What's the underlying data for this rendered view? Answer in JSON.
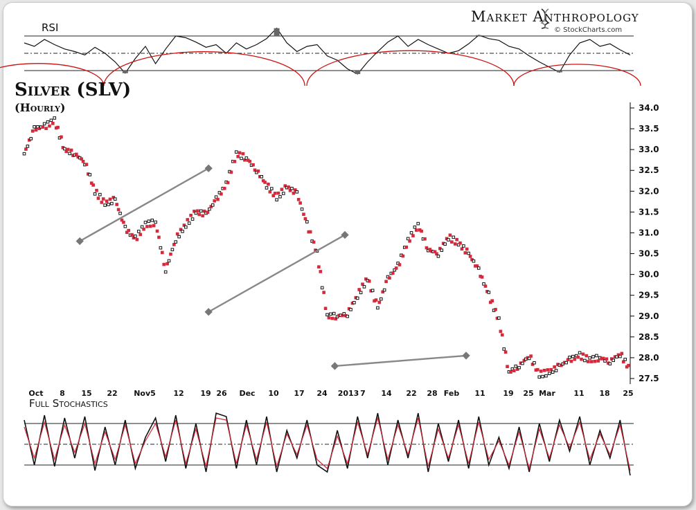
{
  "brand": {
    "name": "Market Anthropology",
    "source": "© StockCharts.com"
  },
  "colors": {
    "black": "#111111",
    "red": "#d42a3c",
    "trend": "#888888",
    "arc": "#cc1111"
  },
  "panels": {
    "rsi_label": "RSI",
    "price_title": "Silver (SLV)",
    "price_subtitle": "(Hourly)",
    "stoch_label": "Full Stochastics"
  },
  "chart_data": [
    {
      "type": "line",
      "title": "RSI",
      "ylim": [
        0,
        100
      ],
      "reference_lines": [
        70,
        50,
        30
      ],
      "x": [
        0,
        2,
        4,
        6,
        8,
        10,
        12,
        14,
        16,
        18,
        20,
        22,
        24,
        26,
        28,
        30,
        32,
        34,
        36,
        38,
        40,
        42,
        44,
        46,
        48,
        50,
        52,
        54,
        56,
        58,
        60,
        62,
        64,
        66,
        68,
        70,
        72,
        74,
        76,
        78,
        80,
        82,
        84,
        86,
        88,
        90,
        92,
        94,
        96,
        98,
        100,
        102,
        104,
        106,
        108,
        110,
        112,
        114,
        116,
        118,
        120
      ],
      "series": [
        {
          "values": [
            62,
            58,
            66,
            60,
            55,
            52,
            48,
            57,
            50,
            40,
            27,
            44,
            58,
            38,
            55,
            70,
            68,
            63,
            57,
            60,
            50,
            62,
            55,
            60,
            67,
            79,
            62,
            52,
            58,
            60,
            47,
            42,
            32,
            26,
            40,
            52,
            63,
            70,
            58,
            66,
            60,
            55,
            50,
            53,
            61,
            71,
            67,
            65,
            58,
            55,
            47,
            40,
            34,
            28,
            48,
            62,
            66,
            58,
            61,
            54,
            48
          ]
        }
      ],
      "arcs": "four semicircular cycle arcs"
    },
    {
      "type": "scatter",
      "title": "Silver (SLV)",
      "subtitle": "(Hourly)",
      "ylim": [
        27.5,
        34.0
      ],
      "yticks": [
        34.0,
        33.5,
        33.0,
        32.5,
        32.0,
        31.5,
        31.0,
        30.5,
        30.0,
        29.5,
        29.0,
        28.5,
        28.0,
        27.5
      ],
      "xtick_labels": [
        "Oct",
        "8",
        "15",
        "22",
        "Nov5",
        "12",
        "19",
        "26",
        "Dec",
        "10",
        "17",
        "24",
        "2013",
        "7",
        "14",
        "22",
        "28",
        "Feb",
        "11",
        "19",
        "25",
        "Mar",
        "11",
        "18",
        "25"
      ],
      "x": [
        0,
        2,
        4,
        6,
        8,
        10,
        12,
        14,
        16,
        18,
        20,
        22,
        24,
        26,
        28,
        30,
        32,
        34,
        36,
        38,
        40,
        42,
        44,
        46,
        48,
        50,
        52,
        54,
        56,
        58,
        60,
        62,
        64,
        66,
        68,
        70,
        72,
        74,
        76,
        78,
        80,
        82,
        84,
        86,
        88,
        90,
        92,
        94,
        96,
        98,
        100,
        102,
        104,
        106,
        108,
        110,
        112,
        114,
        116,
        118,
        120
      ],
      "series": [
        {
          "name": "close",
          "values": [
            32.9,
            33.5,
            33.55,
            33.7,
            33.0,
            32.9,
            32.7,
            32.0,
            31.7,
            31.8,
            31.1,
            30.85,
            31.2,
            31.25,
            30.1,
            30.85,
            31.2,
            31.5,
            31.45,
            31.8,
            32.15,
            32.9,
            32.8,
            32.5,
            32.15,
            31.85,
            32.1,
            31.95,
            31.2,
            30.5,
            29.0,
            29.0,
            29.05,
            29.5,
            29.9,
            29.2,
            29.9,
            30.2,
            30.8,
            31.2,
            30.6,
            30.5,
            30.9,
            30.75,
            30.5,
            30.1,
            29.5,
            28.9,
            27.65,
            27.8,
            28.05,
            27.6,
            27.65,
            27.8,
            27.95,
            28.05,
            27.95,
            28.0,
            27.9,
            28.1,
            27.7
          ]
        }
      ],
      "trendlines": [
        {
          "x": [
            11,
            36.5
          ],
          "y": [
            30.8,
            32.55
          ]
        },
        {
          "x": [
            36.5,
            63.5
          ],
          "y": [
            29.1,
            30.95
          ]
        },
        {
          "x": [
            61.5,
            87.5
          ],
          "y": [
            27.8,
            28.05
          ]
        }
      ]
    },
    {
      "type": "line",
      "title": "Full Stochastics",
      "ylim": [
        0,
        100
      ],
      "reference_lines": [
        80,
        50,
        20
      ],
      "x": [
        0,
        2,
        4,
        6,
        8,
        10,
        12,
        14,
        16,
        18,
        20,
        22,
        24,
        26,
        28,
        30,
        32,
        34,
        36,
        38,
        40,
        42,
        44,
        46,
        48,
        50,
        52,
        54,
        56,
        58,
        60,
        62,
        64,
        66,
        68,
        70,
        72,
        74,
        76,
        78,
        80,
        82,
        84,
        86,
        88,
        90,
        92,
        94,
        96,
        98,
        100,
        102,
        104,
        106,
        108,
        110,
        112,
        114,
        116,
        118,
        120
      ],
      "series": [
        {
          "name": "%K",
          "values": [
            85,
            20,
            92,
            18,
            88,
            30,
            90,
            12,
            75,
            20,
            85,
            15,
            60,
            88,
            25,
            92,
            15,
            80,
            10,
            95,
            90,
            15,
            85,
            20,
            90,
            10,
            70,
            30,
            85,
            20,
            10,
            70,
            15,
            90,
            30,
            95,
            20,
            85,
            30,
            95,
            10,
            80,
            25,
            85,
            15,
            90,
            20,
            60,
            15,
            75,
            10,
            80,
            25,
            85,
            40,
            90,
            20,
            70,
            30,
            85,
            5
          ]
        },
        {
          "name": "%D",
          "values": [
            75,
            30,
            82,
            28,
            78,
            38,
            80,
            22,
            68,
            28,
            78,
            22,
            55,
            80,
            32,
            85,
            22,
            72,
            18,
            88,
            85,
            22,
            78,
            28,
            82,
            18,
            65,
            35,
            78,
            28,
            15,
            62,
            22,
            82,
            35,
            88,
            28,
            78,
            35,
            88,
            18,
            72,
            30,
            78,
            22,
            82,
            28,
            55,
            20,
            68,
            15,
            72,
            30,
            78,
            45,
            82,
            28,
            65,
            35,
            78,
            12
          ]
        }
      ]
    }
  ]
}
